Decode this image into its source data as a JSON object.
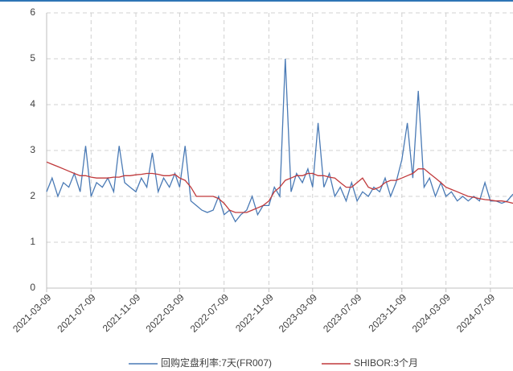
{
  "chart_data": {
    "type": "line",
    "x": [
      "2021-03-09",
      "2021-03-24",
      "2021-04-09",
      "2021-04-24",
      "2021-05-09",
      "2021-05-24",
      "2021-06-09",
      "2021-06-24",
      "2021-07-09",
      "2021-07-24",
      "2021-08-09",
      "2021-08-24",
      "2021-09-09",
      "2021-09-24",
      "2021-10-09",
      "2021-10-24",
      "2021-11-09",
      "2021-11-24",
      "2021-12-09",
      "2021-12-24",
      "2022-01-09",
      "2022-01-24",
      "2022-02-09",
      "2022-02-24",
      "2022-03-09",
      "2022-03-24",
      "2022-04-09",
      "2022-04-24",
      "2022-05-09",
      "2022-05-24",
      "2022-06-09",
      "2022-06-24",
      "2022-07-09",
      "2022-07-24",
      "2022-08-09",
      "2022-08-24",
      "2022-09-09",
      "2022-09-24",
      "2022-10-09",
      "2022-10-24",
      "2022-11-09",
      "2022-11-24",
      "2022-12-09",
      "2022-12-24",
      "2023-01-09",
      "2023-01-24",
      "2023-02-09",
      "2023-02-24",
      "2023-03-09",
      "2023-03-24",
      "2023-04-09",
      "2023-04-24",
      "2023-05-09",
      "2023-05-24",
      "2023-06-09",
      "2023-06-24",
      "2023-07-09",
      "2023-07-24",
      "2023-08-09",
      "2023-08-24",
      "2023-09-09",
      "2023-09-24",
      "2023-10-09",
      "2023-10-24",
      "2023-11-09",
      "2023-11-24",
      "2023-12-09",
      "2023-12-24",
      "2024-01-09",
      "2024-01-24",
      "2024-02-09",
      "2024-02-24",
      "2024-03-09",
      "2024-03-24",
      "2024-04-09",
      "2024-04-24",
      "2024-05-09",
      "2024-05-24",
      "2024-06-09",
      "2024-06-24",
      "2024-07-09",
      "2024-07-24",
      "2024-08-09",
      "2024-08-24",
      "2024-09-09"
    ],
    "series": [
      {
        "name": "回购定盘利率:7天(FR007)",
        "color": "#4a7ab5",
        "values": [
          2.1,
          2.4,
          2.0,
          2.3,
          2.2,
          2.5,
          2.1,
          3.1,
          2.0,
          2.3,
          2.2,
          2.4,
          2.1,
          3.1,
          2.3,
          2.2,
          2.1,
          2.4,
          2.2,
          2.95,
          2.1,
          2.4,
          2.2,
          2.5,
          2.2,
          3.1,
          1.9,
          1.8,
          1.7,
          1.65,
          1.7,
          2.0,
          1.6,
          1.7,
          1.45,
          1.6,
          1.7,
          2.0,
          1.6,
          1.8,
          1.8,
          2.2,
          2.0,
          5.0,
          2.1,
          2.5,
          2.3,
          2.6,
          2.2,
          3.6,
          2.2,
          2.5,
          2.0,
          2.2,
          1.9,
          2.3,
          1.9,
          2.1,
          2.0,
          2.2,
          2.1,
          2.4,
          2.0,
          2.3,
          2.8,
          3.6,
          2.4,
          4.3,
          2.2,
          2.4,
          2.0,
          2.3,
          2.0,
          2.1,
          1.9,
          2.0,
          1.9,
          2.0,
          1.9,
          2.3,
          1.9,
          1.9,
          1.85,
          1.9,
          2.05
        ]
      },
      {
        "name": "SHIBOR:3个月",
        "color": "#c0393b",
        "values": [
          2.75,
          2.7,
          2.65,
          2.6,
          2.55,
          2.5,
          2.45,
          2.45,
          2.42,
          2.4,
          2.4,
          2.4,
          2.42,
          2.42,
          2.45,
          2.45,
          2.47,
          2.48,
          2.5,
          2.5,
          2.48,
          2.45,
          2.45,
          2.48,
          2.4,
          2.35,
          2.2,
          2.0,
          2.0,
          2.0,
          2.0,
          1.95,
          1.85,
          1.7,
          1.65,
          1.65,
          1.65,
          1.7,
          1.75,
          1.8,
          1.9,
          2.1,
          2.2,
          2.35,
          2.4,
          2.45,
          2.45,
          2.5,
          2.5,
          2.45,
          2.45,
          2.42,
          2.4,
          2.3,
          2.2,
          2.2,
          2.3,
          2.4,
          2.2,
          2.15,
          2.2,
          2.3,
          2.35,
          2.35,
          2.4,
          2.45,
          2.5,
          2.6,
          2.6,
          2.5,
          2.4,
          2.3,
          2.2,
          2.15,
          2.1,
          2.05,
          2.0,
          1.98,
          1.95,
          1.93,
          1.92,
          1.9,
          1.9,
          1.88,
          1.85
        ]
      }
    ],
    "xlim": [
      "2021-03-09",
      "2024-09-09"
    ],
    "xticks": [
      "2021-03-09",
      "2021-07-09",
      "2021-11-09",
      "2022-03-09",
      "2022-07-09",
      "2022-11-09",
      "2023-03-09",
      "2023-07-09",
      "2023-11-09",
      "2024-03-09",
      "2024-07-09"
    ],
    "ylim": [
      0,
      6
    ],
    "yticks": [
      0,
      1,
      2,
      3,
      4,
      5,
      6
    ],
    "grid": true,
    "legend": "bottom"
  }
}
